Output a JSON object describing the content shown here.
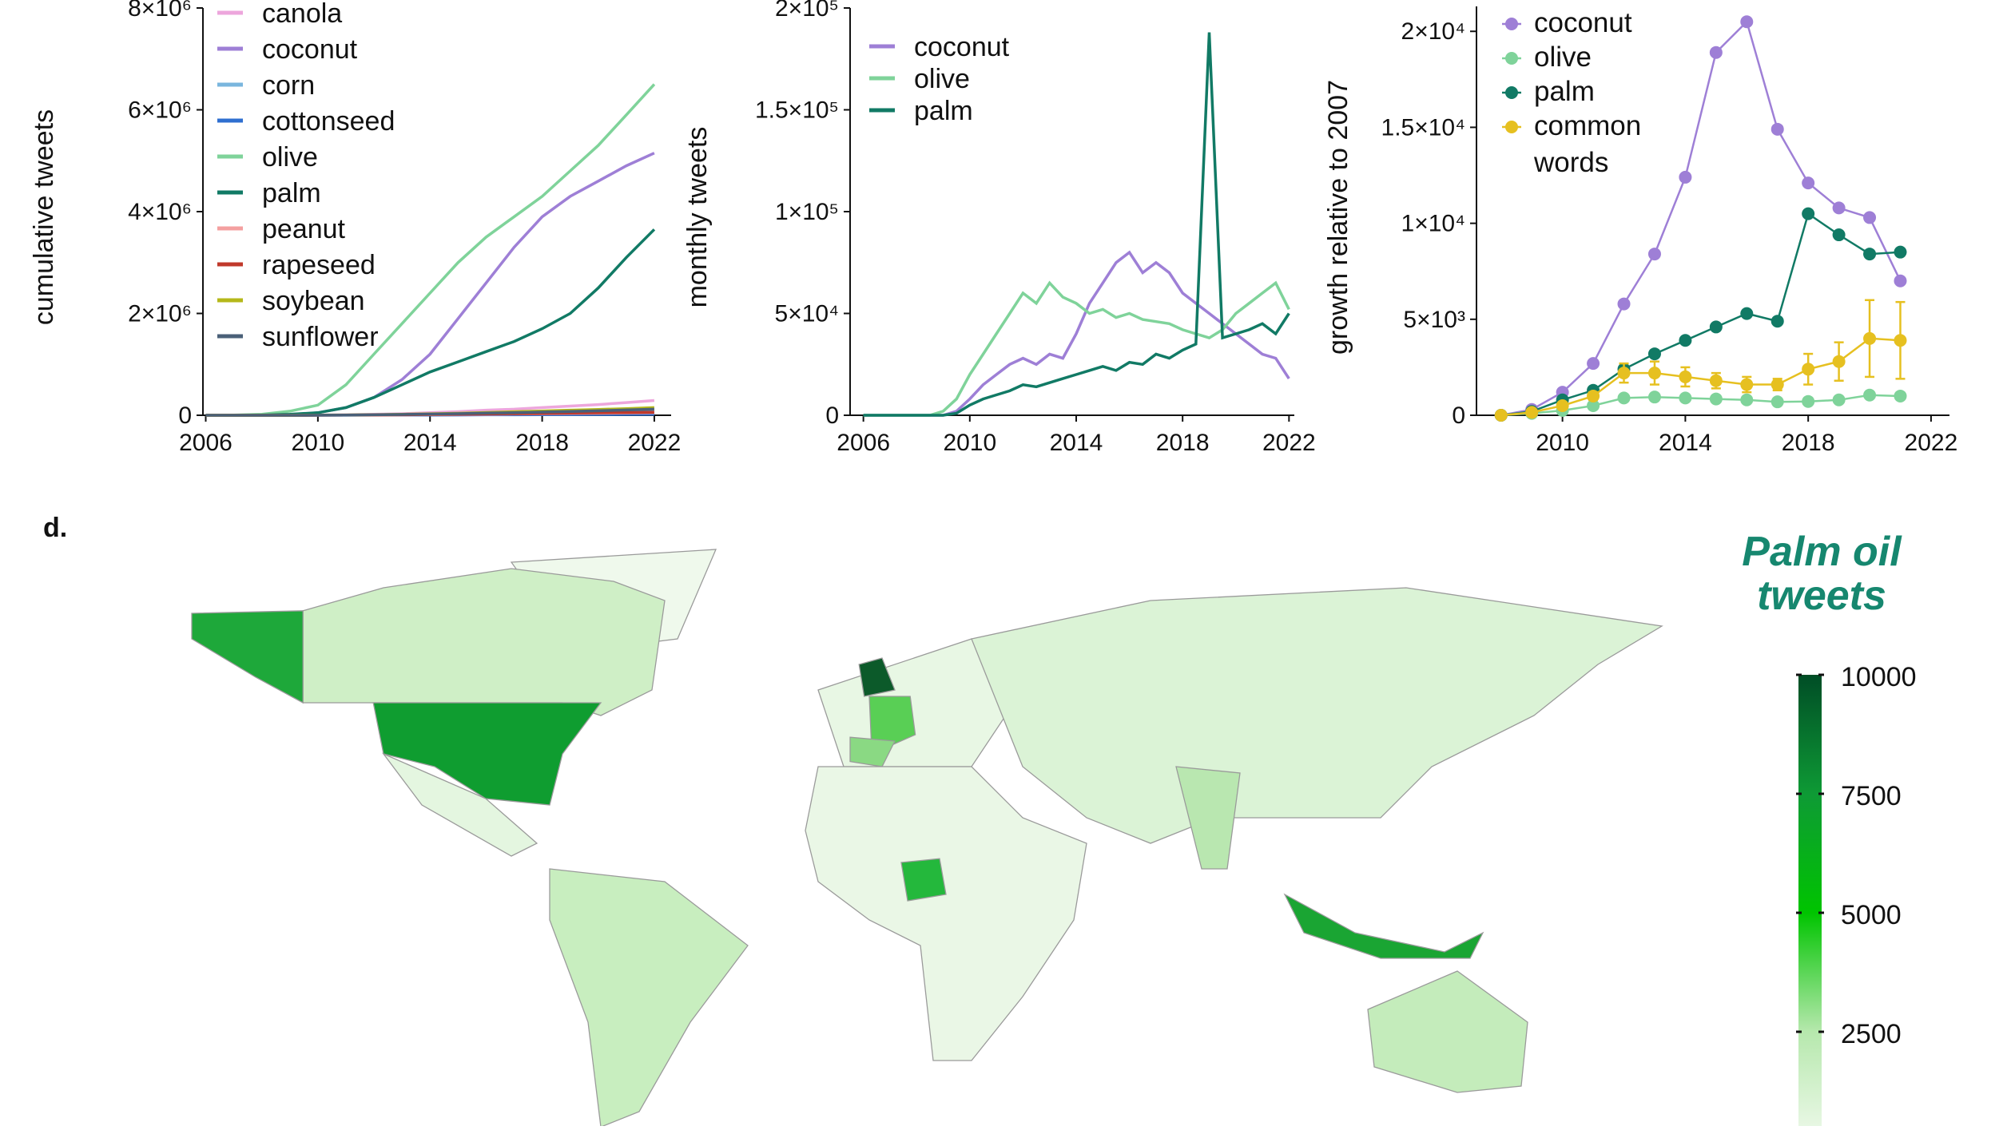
{
  "chart_data": [
    {
      "type": "line",
      "ylabel": "cumulative tweets",
      "x": [
        2006,
        2007,
        2008,
        2009,
        2010,
        2011,
        2012,
        2013,
        2014,
        2015,
        2016,
        2017,
        2018,
        2019,
        2020,
        2021,
        2022
      ],
      "xlim": [
        2005.9,
        2022.6
      ],
      "xticks": [
        2006,
        2010,
        2014,
        2018,
        2022
      ],
      "ylim": [
        0,
        8000000
      ],
      "yticks": [
        0,
        {
          "value": 2000000,
          "label": "2×10⁶"
        },
        {
          "value": 4000000,
          "label": "4×10⁶"
        },
        {
          "value": 6000000,
          "label": "6×10⁶"
        },
        {
          "value": 8000000,
          "label": "8×10⁶"
        }
      ],
      "series": [
        {
          "name": "canola",
          "color": "#eda6dc",
          "values": [
            0,
            0,
            0,
            0,
            5000,
            10000,
            20000,
            30000,
            50000,
            70000,
            100000,
            120000,
            150000,
            180000,
            210000,
            250000,
            290000
          ]
        },
        {
          "name": "coconut",
          "color": "#9e7fd6",
          "values": [
            0,
            0,
            0,
            5000,
            50000,
            150000,
            350000,
            700000,
            1200000,
            1900000,
            2600000,
            3300000,
            3900000,
            4300000,
            4600000,
            4900000,
            5150000
          ]
        },
        {
          "name": "corn",
          "color": "#7ab6de",
          "values": [
            0,
            0,
            0,
            0,
            2000,
            5000,
            10000,
            15000,
            20000,
            30000,
            40000,
            45000,
            50000,
            60000,
            65000,
            70000,
            80000
          ]
        },
        {
          "name": "cottonseed",
          "color": "#2f6fd0",
          "values": [
            0,
            0,
            0,
            0,
            1000,
            2000,
            3000,
            4000,
            5000,
            7000,
            9000,
            10000,
            12000,
            14000,
            16000,
            18000,
            20000
          ]
        },
        {
          "name": "olive",
          "color": "#7fd39a",
          "values": [
            0,
            5000,
            20000,
            80000,
            200000,
            600000,
            1200000,
            1800000,
            2400000,
            3000000,
            3500000,
            3900000,
            4300000,
            4800000,
            5300000,
            5900000,
            6500000
          ]
        },
        {
          "name": "palm",
          "color": "#117a65",
          "values": [
            0,
            0,
            5000,
            20000,
            50000,
            150000,
            350000,
            600000,
            850000,
            1050000,
            1250000,
            1450000,
            1700000,
            2000000,
            2500000,
            3100000,
            3650000
          ]
        },
        {
          "name": "peanut",
          "color": "#f4a0a0",
          "values": [
            0,
            0,
            0,
            0,
            1000,
            3000,
            5000,
            8000,
            12000,
            16000,
            20000,
            25000,
            30000,
            35000,
            40000,
            45000,
            50000
          ]
        },
        {
          "name": "rapeseed",
          "color": "#c0392b",
          "values": [
            0,
            0,
            0,
            0,
            2000,
            4000,
            7000,
            10000,
            15000,
            20000,
            25000,
            30000,
            36000,
            42000,
            48000,
            54000,
            60000
          ]
        },
        {
          "name": "soybean",
          "color": "#b5b81a",
          "values": [
            0,
            0,
            0,
            0,
            3000,
            7000,
            12000,
            20000,
            30000,
            40000,
            55000,
            70000,
            85000,
            100000,
            115000,
            130000,
            150000
          ]
        },
        {
          "name": "sunflower",
          "color": "#4a6078",
          "values": [
            0,
            0,
            0,
            0,
            2000,
            5000,
            10000,
            16000,
            24000,
            32000,
            42000,
            52000,
            62000,
            74000,
            88000,
            104000,
            120000
          ]
        }
      ]
    },
    {
      "type": "line",
      "ylabel": "monthly tweets",
      "x": [
        2006,
        2006.5,
        2007,
        2007.5,
        2008,
        2008.5,
        2009,
        2009.5,
        2010,
        2010.5,
        2011,
        2011.5,
        2012,
        2012.5,
        2013,
        2013.5,
        2014,
        2014.5,
        2015,
        2015.5,
        2016,
        2016.5,
        2017,
        2017.5,
        2018,
        2018.5,
        2019,
        2019.5,
        2020,
        2020.5,
        2021,
        2021.5,
        2022
      ],
      "xlim": [
        2005.5,
        2022.2
      ],
      "xticks": [
        2006,
        2010,
        2014,
        2018,
        2022
      ],
      "ylim": [
        0,
        200000
      ],
      "yticks": [
        0,
        {
          "value": 50000,
          "label": "5×10⁴"
        },
        {
          "value": 100000,
          "label": "1×10⁵"
        },
        {
          "value": 150000,
          "label": "1.5×10⁵"
        },
        {
          "value": 200000,
          "label": "2×10⁵"
        }
      ],
      "series": [
        {
          "name": "coconut",
          "color": "#9e7fd6",
          "values": [
            0,
            0,
            0,
            0,
            0,
            0,
            0,
            2000,
            8000,
            15000,
            20000,
            25000,
            28000,
            25000,
            30000,
            28000,
            40000,
            55000,
            65000,
            75000,
            80000,
            70000,
            75000,
            70000,
            60000,
            55000,
            50000,
            45000,
            40000,
            35000,
            30000,
            28000,
            18000
          ]
        },
        {
          "name": "olive",
          "color": "#7fd39a",
          "values": [
            0,
            0,
            0,
            0,
            0,
            0,
            2000,
            8000,
            20000,
            30000,
            40000,
            50000,
            60000,
            55000,
            65000,
            58000,
            55000,
            50000,
            52000,
            48000,
            50000,
            47000,
            46000,
            45000,
            42000,
            40000,
            38000,
            42000,
            50000,
            55000,
            60000,
            65000,
            52000
          ]
        },
        {
          "name": "palm",
          "color": "#117a65",
          "values": [
            0,
            0,
            0,
            0,
            0,
            0,
            0,
            1000,
            5000,
            8000,
            10000,
            12000,
            15000,
            14000,
            16000,
            18000,
            20000,
            22000,
            24000,
            22000,
            26000,
            25000,
            30000,
            28000,
            32000,
            35000,
            188000,
            38000,
            40000,
            42000,
            45000,
            40000,
            50000
          ]
        }
      ]
    },
    {
      "type": "line",
      "ylabel": "growth relative to 2007",
      "markers": true,
      "x": [
        2008,
        2009,
        2010,
        2011,
        2012,
        2013,
        2014,
        2015,
        2016,
        2017,
        2018,
        2019,
        2020,
        2021
      ],
      "xlim": [
        2007.2,
        2022.6
      ],
      "xticks": [
        2010,
        2014,
        2018,
        2022
      ],
      "ylim": [
        0,
        21300
      ],
      "yticks": [
        0,
        {
          "value": 5000,
          "label": "5×10³"
        },
        {
          "value": 10000,
          "label": "1×10⁴"
        },
        {
          "value": 15000,
          "label": "1.5×10⁴"
        },
        {
          "value": 20000,
          "label": "2×10⁴"
        }
      ],
      "series": [
        {
          "name": "coconut",
          "color": "#9e7fd6",
          "values": [
            0,
            300,
            1200,
            2700,
            5800,
            8400,
            12400,
            18900,
            20500,
            14900,
            12100,
            10800,
            10300,
            7000
          ]
        },
        {
          "name": "olive",
          "color": "#7fd39a",
          "values": [
            0,
            100,
            250,
            500,
            900,
            950,
            900,
            850,
            800,
            700,
            720,
            800,
            1050,
            1000
          ]
        },
        {
          "name": "palm",
          "color": "#117a65",
          "values": [
            0,
            200,
            800,
            1300,
            2400,
            3200,
            3900,
            4600,
            5300,
            4900,
            10500,
            9400,
            8400,
            8500
          ]
        },
        {
          "name": "common words",
          "color": "#e6c020",
          "values": [
            0,
            150,
            500,
            1000,
            2200,
            2200,
            2000,
            1800,
            1600,
            1600,
            2400,
            2800,
            4000,
            3900
          ],
          "errors": [
            0,
            50,
            100,
            200,
            500,
            600,
            500,
            400,
            400,
            300,
            800,
            1000,
            2000,
            2000
          ]
        }
      ]
    },
    {
      "type": "map",
      "label": "d.",
      "title": "Palm oil tweets",
      "clim": [
        0,
        10000
      ],
      "cticks": [
        2500,
        5000,
        7500,
        10000
      ],
      "colormap": [
        "#f4fbf1",
        "#b6e8ad",
        "#00c400",
        "#0e9a35",
        "#004d26"
      ]
    }
  ]
}
